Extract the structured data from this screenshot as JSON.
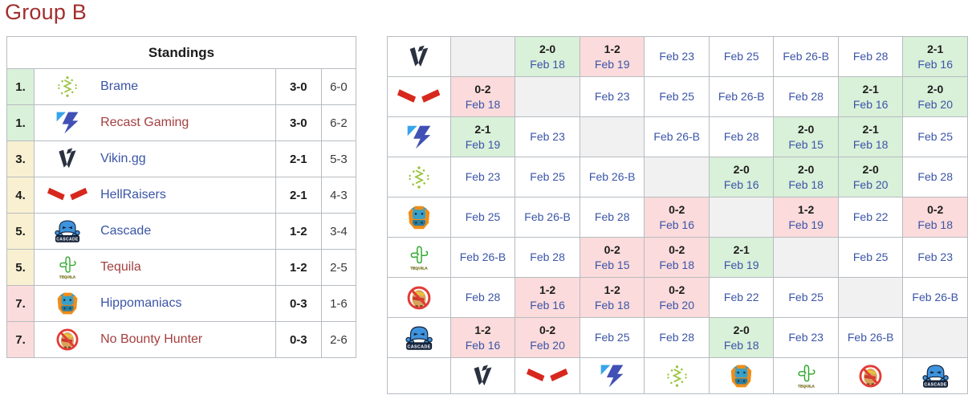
{
  "title": "Group B",
  "colors": {
    "title": "#a22f2f",
    "link_blue": "#3b55a7",
    "link_red": "#a53f3f",
    "win_bg": "#d9f0d9",
    "loss_bg": "#fbdbdb",
    "self_bg": "#f1f1f1",
    "zone_up_bg": "#d9f0d9",
    "zone_mid_bg": "#f8f0d0",
    "zone_down_bg": "#fbdcdc"
  },
  "team_meta": {
    "vikin": {
      "label": "Vikin.gg",
      "icon": "vikin-gg-icon"
    },
    "hellraisers": {
      "label": "HellRaisers",
      "icon": "hellraisers-icon"
    },
    "recast": {
      "label": "Recast Gaming",
      "icon": "recast-gaming-icon"
    },
    "brame": {
      "label": "Brame",
      "icon": "brame-icon"
    },
    "hippo": {
      "label": "Hippomaniacs",
      "icon": "hippomaniacs-icon"
    },
    "tequila": {
      "label": "Tequila",
      "icon": "tequila-icon"
    },
    "nbh": {
      "label": "No Bounty Hunter",
      "icon": "no-bounty-hunter-icon"
    },
    "cascade": {
      "label": "Cascade",
      "icon": "cascade-icon"
    }
  },
  "standings": {
    "header": "Standings",
    "rows": [
      {
        "rank": "1.",
        "team": "brame",
        "name": "Brame",
        "link": "blue",
        "match": "3-0",
        "games": "6-0",
        "zone": "up"
      },
      {
        "rank": "1.",
        "team": "recast",
        "name": "Recast Gaming",
        "link": "red",
        "match": "3-0",
        "games": "6-2",
        "zone": "up"
      },
      {
        "rank": "3.",
        "team": "vikin",
        "name": "Vikin.gg",
        "link": "blue",
        "match": "2-1",
        "games": "5-3",
        "zone": "mid"
      },
      {
        "rank": "4.",
        "team": "hellraisers",
        "name": "HellRaisers",
        "link": "blue",
        "match": "2-1",
        "games": "4-3",
        "zone": "mid"
      },
      {
        "rank": "5.",
        "team": "cascade",
        "name": "Cascade",
        "link": "blue",
        "match": "1-2",
        "games": "3-4",
        "zone": "mid"
      },
      {
        "rank": "5.",
        "team": "tequila",
        "name": "Tequila",
        "link": "red",
        "match": "1-2",
        "games": "2-5",
        "zone": "mid"
      },
      {
        "rank": "7.",
        "team": "hippo",
        "name": "Hippomaniacs",
        "link": "blue",
        "match": "0-3",
        "games": "1-6",
        "zone": "down"
      },
      {
        "rank": "7.",
        "team": "nbh",
        "name": "No Bounty Hunter",
        "link": "red",
        "match": "0-3",
        "games": "2-6",
        "zone": "down"
      }
    ]
  },
  "crosstable": {
    "teams": [
      "vikin",
      "hellraisers",
      "recast",
      "brame",
      "hippo",
      "tequila",
      "nbh",
      "cascade"
    ],
    "rows": [
      [
        {
          "t": "self"
        },
        {
          "t": "res",
          "s": "2-0",
          "d": "Feb 18",
          "w": 1
        },
        {
          "t": "res",
          "s": "1-2",
          "d": "Feb 19",
          "w": 0
        },
        {
          "t": "date",
          "d": "Feb 23"
        },
        {
          "t": "date",
          "d": "Feb 25"
        },
        {
          "t": "date",
          "d": "Feb 26-B"
        },
        {
          "t": "date",
          "d": "Feb 28"
        },
        {
          "t": "res",
          "s": "2-1",
          "d": "Feb 16",
          "w": 1
        }
      ],
      [
        {
          "t": "res",
          "s": "0-2",
          "d": "Feb 18",
          "w": 0
        },
        {
          "t": "self"
        },
        {
          "t": "date",
          "d": "Feb 23"
        },
        {
          "t": "date",
          "d": "Feb 25"
        },
        {
          "t": "date",
          "d": "Feb 26-B"
        },
        {
          "t": "date",
          "d": "Feb 28"
        },
        {
          "t": "res",
          "s": "2-1",
          "d": "Feb 16",
          "w": 1
        },
        {
          "t": "res",
          "s": "2-0",
          "d": "Feb 20",
          "w": 1
        }
      ],
      [
        {
          "t": "res",
          "s": "2-1",
          "d": "Feb 19",
          "w": 1
        },
        {
          "t": "date",
          "d": "Feb 23"
        },
        {
          "t": "self"
        },
        {
          "t": "date",
          "d": "Feb 26-B"
        },
        {
          "t": "date",
          "d": "Feb 28"
        },
        {
          "t": "res",
          "s": "2-0",
          "d": "Feb 15",
          "w": 1
        },
        {
          "t": "res",
          "s": "2-1",
          "d": "Feb 18",
          "w": 1
        },
        {
          "t": "date",
          "d": "Feb 25"
        }
      ],
      [
        {
          "t": "date",
          "d": "Feb 23"
        },
        {
          "t": "date",
          "d": "Feb 25"
        },
        {
          "t": "date",
          "d": "Feb 26-B"
        },
        {
          "t": "self"
        },
        {
          "t": "res",
          "s": "2-0",
          "d": "Feb 16",
          "w": 1
        },
        {
          "t": "res",
          "s": "2-0",
          "d": "Feb 18",
          "w": 1
        },
        {
          "t": "res",
          "s": "2-0",
          "d": "Feb 20",
          "w": 1
        },
        {
          "t": "date",
          "d": "Feb 28"
        }
      ],
      [
        {
          "t": "date",
          "d": "Feb 25"
        },
        {
          "t": "date",
          "d": "Feb 26-B"
        },
        {
          "t": "date",
          "d": "Feb 28"
        },
        {
          "t": "res",
          "s": "0-2",
          "d": "Feb 16",
          "w": 0
        },
        {
          "t": "self"
        },
        {
          "t": "res",
          "s": "1-2",
          "d": "Feb 19",
          "w": 0
        },
        {
          "t": "date",
          "d": "Feb 22"
        },
        {
          "t": "res",
          "s": "0-2",
          "d": "Feb 18",
          "w": 0
        }
      ],
      [
        {
          "t": "date",
          "d": "Feb 26-B"
        },
        {
          "t": "date",
          "d": "Feb 28"
        },
        {
          "t": "res",
          "s": "0-2",
          "d": "Feb 15",
          "w": 0
        },
        {
          "t": "res",
          "s": "0-2",
          "d": "Feb 18",
          "w": 0
        },
        {
          "t": "res",
          "s": "2-1",
          "d": "Feb 19",
          "w": 1
        },
        {
          "t": "self"
        },
        {
          "t": "date",
          "d": "Feb 25"
        },
        {
          "t": "date",
          "d": "Feb 23"
        }
      ],
      [
        {
          "t": "date",
          "d": "Feb 28"
        },
        {
          "t": "res",
          "s": "1-2",
          "d": "Feb 16",
          "w": 0
        },
        {
          "t": "res",
          "s": "1-2",
          "d": "Feb 18",
          "w": 0
        },
        {
          "t": "res",
          "s": "0-2",
          "d": "Feb 20",
          "w": 0
        },
        {
          "t": "date",
          "d": "Feb 22"
        },
        {
          "t": "date",
          "d": "Feb 25"
        },
        {
          "t": "self"
        },
        {
          "t": "date",
          "d": "Feb 26-B"
        }
      ],
      [
        {
          "t": "res",
          "s": "1-2",
          "d": "Feb 16",
          "w": 0
        },
        {
          "t": "res",
          "s": "0-2",
          "d": "Feb 20",
          "w": 0
        },
        {
          "t": "date",
          "d": "Feb 25"
        },
        {
          "t": "date",
          "d": "Feb 28"
        },
        {
          "t": "res",
          "s": "2-0",
          "d": "Feb 18",
          "w": 1
        },
        {
          "t": "date",
          "d": "Feb 23"
        },
        {
          "t": "date",
          "d": "Feb 26-B"
        },
        {
          "t": "self"
        }
      ]
    ]
  }
}
